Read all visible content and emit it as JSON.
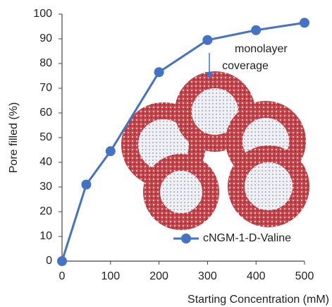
{
  "chart_data": {
    "type": "line",
    "x_label": "Starting Concentration (mM)",
    "y_label": "Pore filled (%)",
    "x": [
      0,
      50,
      100,
      200,
      300,
      400,
      500
    ],
    "series": [
      {
        "name": "cNGM-1-D-Valine",
        "color": "#4472c4",
        "values": [
          0,
          31,
          44.5,
          76.5,
          89.5,
          93.5,
          96.5
        ]
      }
    ],
    "xlim": [
      0,
      500
    ],
    "xticks": [
      0,
      100,
      200,
      300,
      400,
      500
    ],
    "ylim": [
      0,
      100
    ],
    "yticks": [
      0,
      10,
      20,
      30,
      40,
      50,
      60,
      70,
      80,
      90,
      100
    ],
    "legend": "lower right",
    "annotations": [
      {
        "lines": [
          "monolayer",
          "coverage"
        ]
      }
    ]
  }
}
